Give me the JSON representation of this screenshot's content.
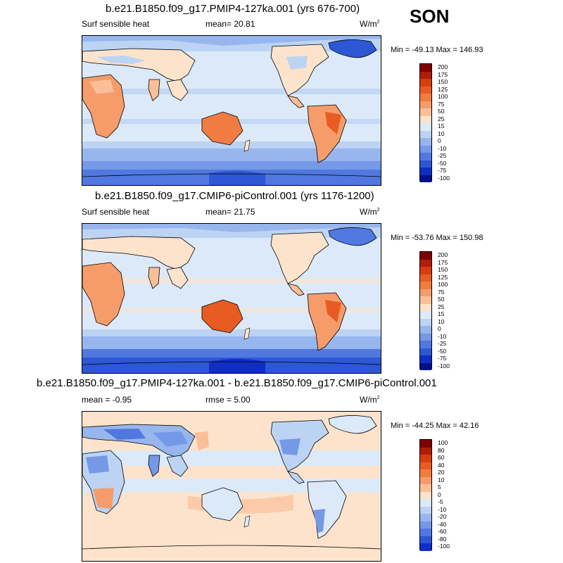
{
  "season": "SON",
  "panels": [
    {
      "title": "b.e21.B1850.f09_g17.PMIP4-127ka.001 (yrs 676-700)",
      "left_label": "Surf sensible heat",
      "center_label": "mean=  20.81",
      "units": "W/m",
      "units_sup": "2",
      "minmax": "Min = -49.13 Max = 146.93",
      "colorbar_ticks": [
        "200",
        "175",
        "150",
        "125",
        "100",
        "75",
        "50",
        "25",
        "15",
        "10",
        "0",
        "-10",
        "-25",
        "-50",
        "-75",
        "-100"
      ],
      "colorbar_colors": [
        "#7f0000",
        "#b01c05",
        "#d63e0f",
        "#e85b22",
        "#f07c42",
        "#f69c6a",
        "#fabf98",
        "#fde3cc",
        "#dce9f8",
        "#bcd3f3",
        "#98b6ee",
        "#7598e7",
        "#5078df",
        "#2d57d4",
        "#0e2ec4",
        "#00118a"
      ]
    },
    {
      "title": "b.e21.B1850.f09_g17.CMIP6-piControl.001 (yrs 1176-1200)",
      "left_label": "Surf sensible heat",
      "center_label": "mean=  21.75",
      "units": "W/m",
      "units_sup": "2",
      "minmax": "Min = -53.76 Max = 150.98",
      "colorbar_ticks": [
        "200",
        "175",
        "150",
        "125",
        "100",
        "75",
        "50",
        "25",
        "15",
        "10",
        "0",
        "-10",
        "-25",
        "-50",
        "-75",
        "-100"
      ],
      "colorbar_colors": [
        "#7f0000",
        "#b01c05",
        "#d63e0f",
        "#e85b22",
        "#f07c42",
        "#f69c6a",
        "#fabf98",
        "#fde3cc",
        "#dce9f8",
        "#bcd3f3",
        "#98b6ee",
        "#7598e7",
        "#5078df",
        "#2d57d4",
        "#0e2ec4",
        "#00118a"
      ]
    },
    {
      "title": "b.e21.B1850.f09_g17.PMIP4-127ka.001 - b.e21.B1850.f09_g17.CMIP6-piControl.001",
      "left_label": "mean =  -0.95",
      "center_label": "rmse =   5.00",
      "units": "W/m",
      "units_sup": "2",
      "minmax": "Min = -44.25 Max =  42.16",
      "colorbar_ticks": [
        "100",
        "80",
        "60",
        "40",
        "20",
        "10",
        "5",
        "0",
        "-5",
        "-10",
        "-20",
        "-40",
        "-60",
        "-80",
        "-100"
      ],
      "colorbar_colors": [
        "#7f0000",
        "#b01c05",
        "#d63e0f",
        "#e85b22",
        "#f07c42",
        "#f69c6a",
        "#fabf98",
        "#fde3cc",
        "#dce9f8",
        "#bcd3f3",
        "#98b6ee",
        "#7598e7",
        "#5078df",
        "#2d57d4",
        "#0e2ec4",
        "#00118a"
      ]
    }
  ],
  "chart_data": [
    {
      "type": "heatmap",
      "title": "b.e21.B1850.f09_g17.PMIP4-127ka.001 (yrs 676-700)",
      "variable": "Surf sensible heat",
      "units": "W/m2",
      "mean": 20.81,
      "min": -49.13,
      "max": 146.93,
      "levels": [
        -100,
        -75,
        -50,
        -25,
        -10,
        0,
        10,
        15,
        25,
        50,
        75,
        100,
        125,
        150,
        175,
        200
      ]
    },
    {
      "type": "heatmap",
      "title": "b.e21.B1850.f09_g17.CMIP6-piControl.001 (yrs 1176-1200)",
      "variable": "Surf sensible heat",
      "units": "W/m2",
      "mean": 21.75,
      "min": -53.76,
      "max": 150.98,
      "levels": [
        -100,
        -75,
        -50,
        -25,
        -10,
        0,
        10,
        15,
        25,
        50,
        75,
        100,
        125,
        150,
        175,
        200
      ]
    },
    {
      "type": "heatmap",
      "title": "b.e21.B1850.f09_g17.PMIP4-127ka.001 - b.e21.B1850.f09_g17.CMIP6-piControl.001",
      "units": "W/m2",
      "mean": -0.95,
      "rmse": 5.0,
      "min": -44.25,
      "max": 42.16,
      "levels": [
        -100,
        -80,
        -60,
        -40,
        -20,
        -10,
        -5,
        0,
        5,
        10,
        20,
        40,
        60,
        80,
        100
      ]
    }
  ]
}
